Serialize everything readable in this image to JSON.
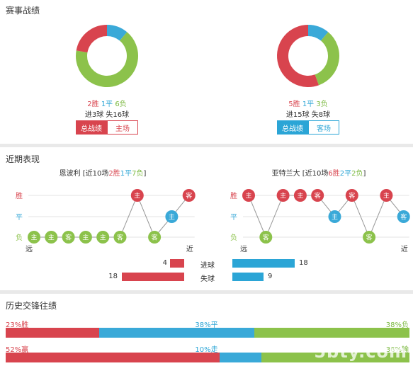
{
  "colors": {
    "win": "#d8444e",
    "draw": "#3aa9d8",
    "loss": "#8cc24b"
  },
  "record": {
    "title": "赛事战绩",
    "home": {
      "win_text": "2胜",
      "draw_text": "1平",
      "loss_text": "6负",
      "goals_text": "进3球 失16球",
      "tab_active": "总战绩",
      "tab_other": "主场",
      "wins": 2,
      "draws": 1,
      "losses": 6
    },
    "away": {
      "win_text": "5胜",
      "draw_text": "1平",
      "loss_text": "3负",
      "goals_text": "进15球 失8球",
      "tab_active": "总战绩",
      "tab_other": "客场",
      "wins": 5,
      "draws": 1,
      "losses": 3
    }
  },
  "recent": {
    "title": "近期表现",
    "y_labels": [
      "胜",
      "平",
      "负"
    ],
    "far": "远",
    "near": "近",
    "home": {
      "team": "恩波利",
      "summary_pre": " [近10场",
      "w": "2胜",
      "d": "1平",
      "l": "7负",
      "end": "]",
      "results": [
        "L",
        "L",
        "L",
        "L",
        "L",
        "L",
        "W",
        "L",
        "D",
        "W"
      ],
      "venues": [
        "主",
        "主",
        "客",
        "主",
        "主",
        "客",
        "主",
        "客",
        "主",
        "客"
      ]
    },
    "away": {
      "team": "亚特兰大",
      "summary_pre": " [近10场",
      "w": "6胜",
      "d": "2平",
      "l": "2负",
      "end": "]",
      "results": [
        "W",
        "L",
        "W",
        "W",
        "W",
        "D",
        "W",
        "L",
        "W",
        "D"
      ],
      "venues": [
        "主",
        "客",
        "主",
        "主",
        "客",
        "主",
        "客",
        "客",
        "主",
        "客"
      ]
    },
    "goals": {
      "scored_label": "进球",
      "conceded_label": "失球",
      "home_scored": 4,
      "home_conceded": 18,
      "away_scored": 18,
      "away_conceded": 9
    }
  },
  "h2h": {
    "title": "历史交锋往绩",
    "row1": {
      "win": "23%胜",
      "draw": "38%平",
      "loss": "38%负",
      "win_pct": 23,
      "draw_pct": 38,
      "loss_pct": 38
    },
    "row2": {
      "win": "52%赢",
      "draw": "10%走",
      "loss": "36%输",
      "win_pct": 52,
      "draw_pct": 10,
      "loss_pct": 36
    }
  },
  "watermark": "5bty.com"
}
